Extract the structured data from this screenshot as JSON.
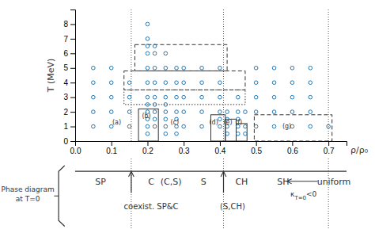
{
  "chart_data": {
    "type": "scatter",
    "xlabel": "ρ/ρ₀",
    "ylabel": "T (MeV)",
    "xlim": [
      0,
      0.75
    ],
    "ylim": [
      0,
      9
    ],
    "xticks": [
      {
        "value": 0,
        "label": "0.0"
      },
      0.1,
      0.2,
      0.3,
      0.4,
      0.5,
      0.6,
      0.7
    ],
    "yticks": [
      0,
      1,
      2,
      3,
      4,
      5,
      6,
      7,
      8
    ],
    "x": [
      0.05,
      0.05,
      0.05,
      0.05,
      0.05,
      0.1,
      0.1,
      0.1,
      0.1,
      0.1,
      0.15,
      0.15,
      0.15,
      0.15,
      0.2,
      0.2,
      0.2,
      0.2,
      0.2,
      0.2,
      0.2,
      0.2,
      0.2,
      0.2,
      0.2,
      0.2,
      0.22,
      0.22,
      0.22,
      0.22,
      0.22,
      0.22,
      0.22,
      0.22,
      0.22,
      0.25,
      0.25,
      0.25,
      0.25,
      0.25,
      0.25,
      0.25,
      0.25,
      0.25,
      0.28,
      0.28,
      0.28,
      0.28,
      0.28,
      0.28,
      0.28,
      0.3,
      0.3,
      0.3,
      0.3,
      0.3,
      0.35,
      0.35,
      0.35,
      0.35,
      0.35,
      0.4,
      0.4,
      0.4,
      0.4,
      0.4,
      0.4,
      0.42,
      0.42,
      0.42,
      0.42,
      0.45,
      0.45,
      0.45,
      0.45,
      0.45,
      0.47,
      0.47,
      0.47,
      0.5,
      0.5,
      0.5,
      0.5,
      0.5,
      0.55,
      0.55,
      0.55,
      0.55,
      0.55,
      0.6,
      0.6,
      0.6,
      0.6,
      0.6,
      0.65,
      0.65,
      0.65,
      0.65,
      0.65,
      0.7
    ],
    "values": [
      1,
      2,
      3,
      4,
      5,
      1,
      2,
      3,
      4,
      5,
      1,
      2,
      3,
      4,
      0.5,
      1,
      1.5,
      2,
      2.5,
      3,
      4,
      5,
      6,
      6.5,
      7,
      8,
      1,
      1.5,
      2,
      2.5,
      3,
      4,
      5,
      6,
      6.5,
      0.5,
      1,
      1.5,
      2,
      2.5,
      3,
      4,
      5,
      6,
      0.5,
      1,
      1.5,
      2,
      3,
      4,
      5,
      1,
      2,
      3,
      4,
      5,
      1,
      2,
      3,
      4,
      5,
      1,
      1.5,
      2,
      3,
      4,
      5,
      0.5,
      1,
      1.5,
      2,
      0.5,
      1,
      1.5,
      2,
      3,
      0.5,
      1,
      2,
      1,
      2,
      3,
      4,
      5,
      1,
      2,
      3,
      4,
      5,
      1,
      2,
      3,
      4,
      5,
      1,
      2,
      3,
      4,
      5,
      1
    ],
    "boxes": [
      {
        "x0": 0.165,
        "y0": 4.8,
        "x1": 0.42,
        "y1": 6.6,
        "line_style": "dashed"
      },
      {
        "x0": 0.135,
        "y0": 3.5,
        "x1": 0.47,
        "y1": 4.8,
        "line_style": "dashed"
      },
      {
        "x0": 0.135,
        "y0": 2.5,
        "x1": 0.47,
        "y1": 3.5,
        "line_style": "dotted"
      },
      {
        "x0": 0.175,
        "y0": 0.0,
        "x1": 0.23,
        "y1": 2.2,
        "line_style": "solid"
      },
      {
        "x0": 0.375,
        "y0": 0.0,
        "x1": 0.415,
        "y1": 1.8,
        "line_style": "solid"
      },
      {
        "x0": 0.415,
        "y0": 0.0,
        "x1": 0.445,
        "y1": 1.5,
        "line_style": "solid"
      },
      {
        "x0": 0.445,
        "y0": 0.0,
        "x1": 0.475,
        "y1": 1.2,
        "line_style": "solid"
      },
      {
        "x0": 0.495,
        "y0": 0.0,
        "x1": 0.71,
        "y1": 1.8,
        "line_style": "dashed"
      }
    ],
    "annotations": [
      {
        "x": 0.115,
        "y": 1.15,
        "text": "(a)"
      },
      {
        "x": 0.197,
        "y": 1.55,
        "text": "(b)"
      },
      {
        "x": 0.275,
        "y": 1.15,
        "text": "(c)"
      },
      {
        "x": 0.383,
        "y": 1.15,
        "text": "(d)"
      },
      {
        "x": 0.422,
        "y": 1.15,
        "text": "(e)"
      },
      {
        "x": 0.452,
        "y": 1.15,
        "text": "(f)"
      },
      {
        "x": 0.585,
        "y": 0.85,
        "text": "(g)"
      }
    ],
    "verticals": [
      0.155,
      0.41,
      0.7
    ],
    "phase_labels": [
      {
        "x": 0.07,
        "text": "SP"
      },
      {
        "x": 0.21,
        "text": "C"
      },
      {
        "x": 0.265,
        "text": "(C,S)"
      },
      {
        "x": 0.355,
        "text": "S"
      },
      {
        "x": 0.46,
        "text": "CH"
      },
      {
        "x": 0.575,
        "text": "SH"
      },
      {
        "x": 0.715,
        "text": "uniform"
      }
    ],
    "boundary_arrows": [
      0.155,
      0.41
    ],
    "coexistence_labels": [
      {
        "x": 0.21,
        "text": "coexist. SP&C"
      },
      {
        "x": 0.435,
        "text": "(S,CH)"
      }
    ],
    "kappa_note": {
      "from": 0.67,
      "to": 0.585,
      "x": 0.595,
      "text": "κ",
      "sub": "T=0",
      "tail": "<0"
    },
    "side_note": [
      "Phase diagram",
      "at T=0"
    ]
  }
}
